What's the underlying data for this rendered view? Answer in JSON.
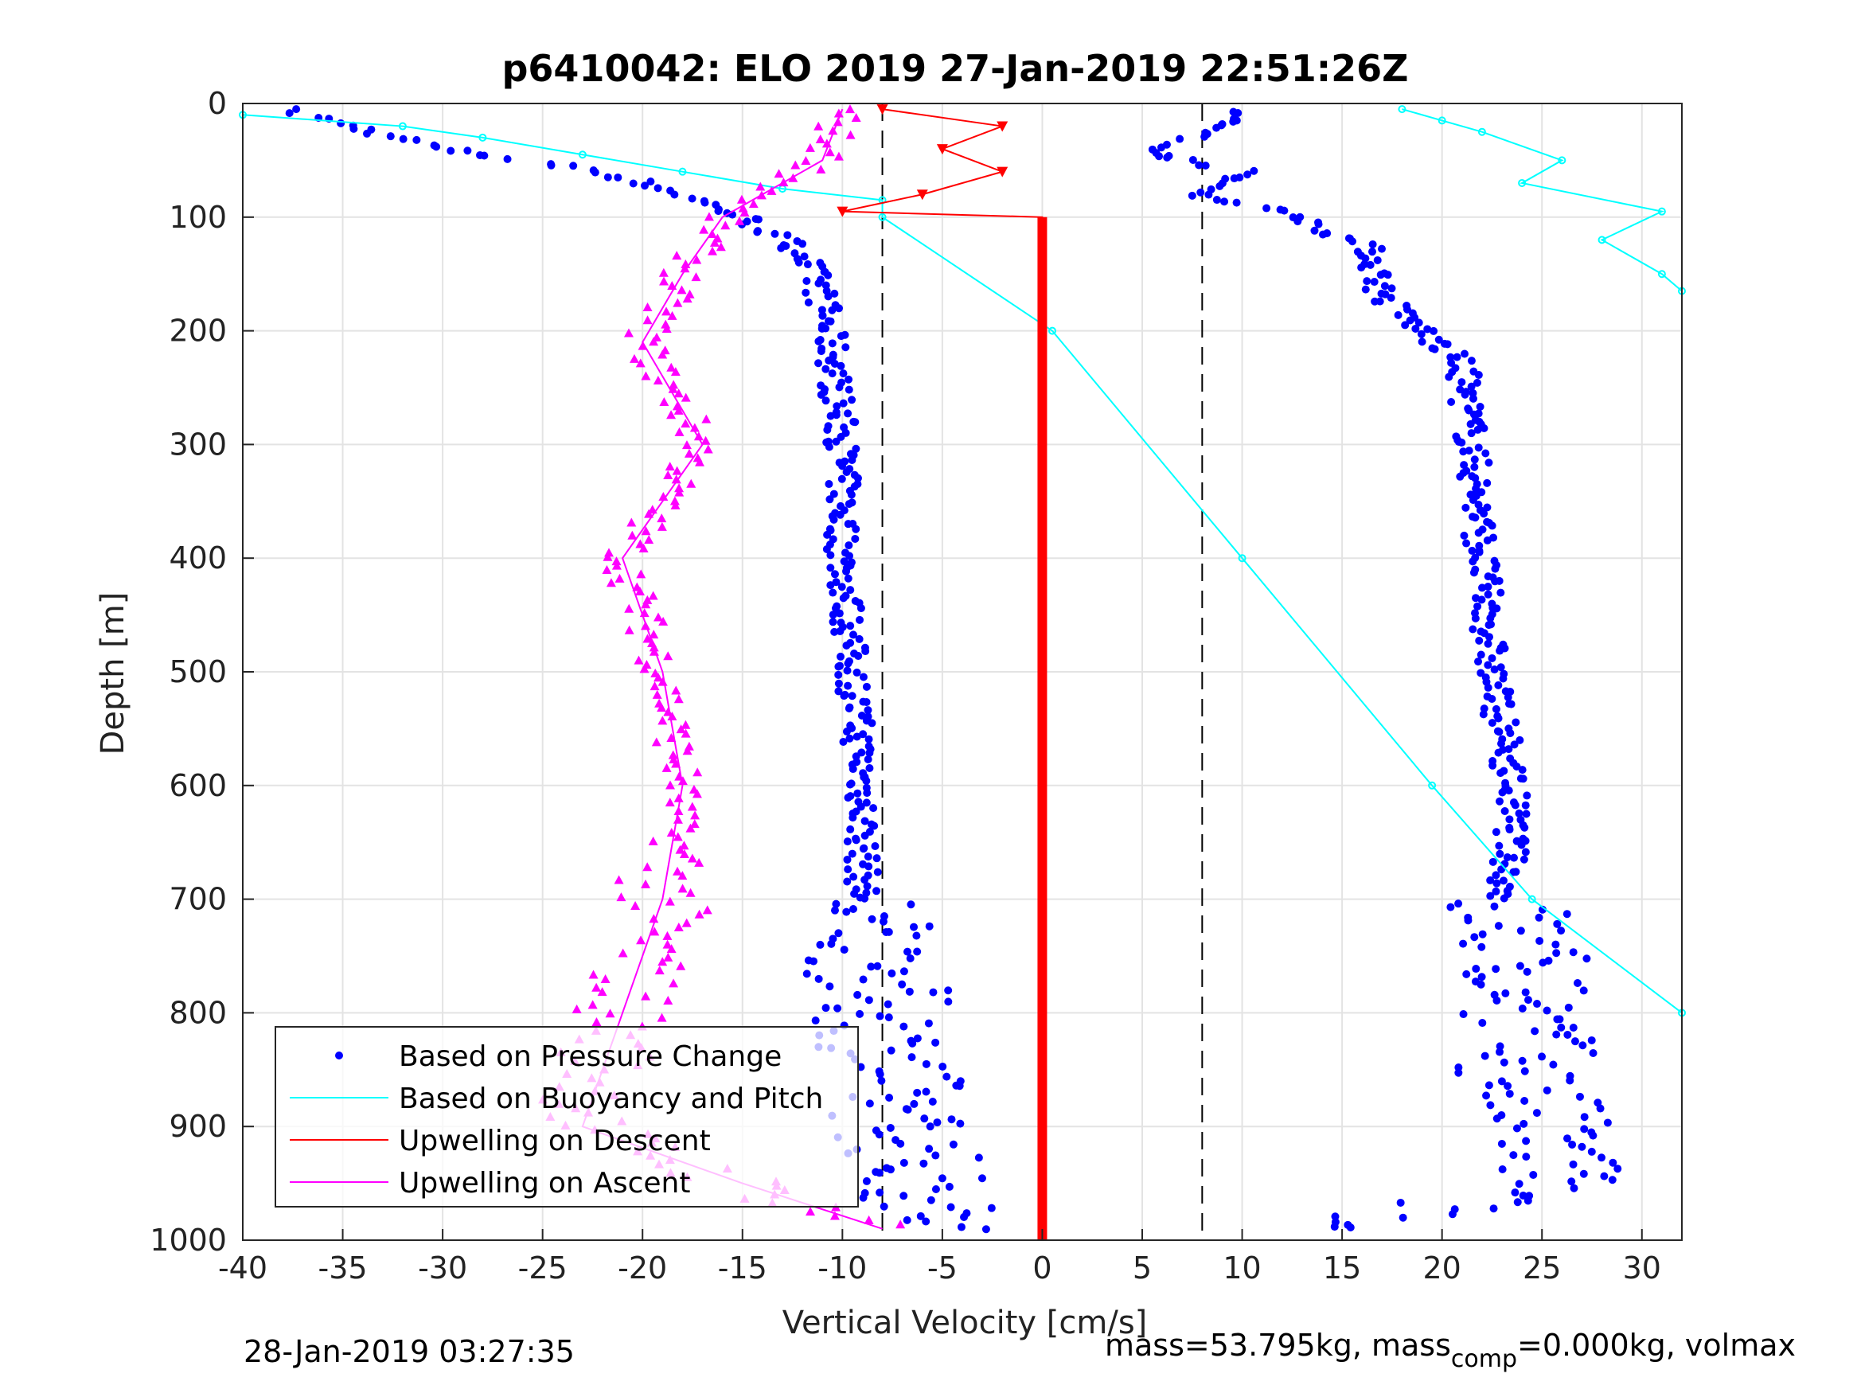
{
  "chart_data": {
    "type": "scatter",
    "title": "p6410042: ELO 2019 27-Jan-2019 22:51:26Z",
    "xlabel": "Vertical Velocity [cm/s]",
    "ylabel": "Depth [m]",
    "xlim": [
      -40,
      32
    ],
    "ylim": [
      1000,
      0
    ],
    "xticks": [
      "-40",
      "-35",
      "-30",
      "-25",
      "-20",
      "-15",
      "-10",
      "-5",
      "0",
      "5",
      "10",
      "15",
      "20",
      "25",
      "30"
    ],
    "yticks": [
      "0",
      "100",
      "200",
      "300",
      "400",
      "500",
      "600",
      "700",
      "800",
      "900",
      "1000"
    ],
    "grid": true,
    "legend_position": "bottom-left",
    "legend": [
      {
        "label": "Based on Pressure Change",
        "color": "#0000ff",
        "marker": "dot"
      },
      {
        "label": "Based on Buoyancy and Pitch",
        "color": "#00ffff",
        "marker": "line"
      },
      {
        "label": "Upwelling on Descent",
        "color": "#ff0000",
        "marker": "line"
      },
      {
        "label": "Upwelling on Ascent",
        "color": "#ff00ff",
        "marker": "line"
      }
    ],
    "threshold_lines_x": [
      -8,
      8
    ],
    "series": [
      {
        "name": "Based on Pressure Change",
        "color": "#0000ff",
        "profiles": [
          {
            "depth": [
              5,
              40,
              60,
              80,
              100,
              130,
              170,
              220,
              300,
              400,
              500,
              600,
              700,
              750,
              800,
              850,
              900,
              950,
              990
            ],
            "velocity": [
              -38,
              -30,
              -22,
              -18,
              -15,
              -12,
              -11,
              -10.5,
              -10,
              -10,
              -9.5,
              -9,
              -9,
              -8.5,
              -8,
              -7.5,
              -7,
              -6,
              -5
            ]
          },
          {
            "depth": [
              5,
              30,
              40,
              60,
              80,
              100,
              130,
              170,
              200,
              230,
              300,
              400,
              500,
              600,
              650,
              700,
              750,
              800,
              850,
              900,
              950,
              990
            ],
            "velocity": [
              10,
              8,
              5,
              10,
              8,
              13,
              16.5,
              17,
              19,
              21,
              21.5,
              22,
              22.5,
              23.5,
              23.5,
              23,
              24,
              24.5,
              24,
              25,
              26,
              14
            ]
          }
        ]
      },
      {
        "name": "Based on Buoyancy and Pitch",
        "color": "#00ffff",
        "profiles": [
          {
            "depth": [
              10,
              20,
              30,
              45,
              60,
              75,
              85,
              100,
              200,
              400,
              600,
              700,
              800
            ],
            "velocity": [
              -40,
              -32,
              -28,
              -23,
              -18,
              -13,
              -8,
              -8,
              0.5,
              10,
              19.5,
              24.5,
              32
            ]
          },
          {
            "depth": [
              5,
              15,
              25,
              50,
              70,
              95,
              120,
              150,
              165
            ],
            "velocity": [
              18,
              20,
              22,
              26,
              24,
              31,
              28,
              31,
              32
            ]
          }
        ]
      },
      {
        "name": "Upwelling on Descent",
        "color": "#ff0000",
        "profiles": [
          {
            "depth": [
              5,
              20,
              40,
              60,
              80,
              95,
              100,
              1000
            ],
            "velocity": [
              -8,
              -2,
              -5,
              -2,
              -6,
              -10,
              0,
              0
            ]
          }
        ]
      },
      {
        "name": "Upwelling on Ascent",
        "color": "#ff00ff",
        "profiles": [
          {
            "depth": [
              5,
              50,
              100,
              150,
              210,
              300,
              400,
              500,
              600,
              700,
              800,
              900,
              950,
              990
            ],
            "velocity": [
              -10,
              -11,
              -16,
              -18,
              -20,
              -17,
              -21,
              -19,
              -18,
              -19,
              -21,
              -23,
              -15,
              -8
            ]
          }
        ]
      }
    ],
    "footer_left": "28-Jan-2019 03:27:35",
    "footer_right": "mass=53.795kg, mass",
    "footer_right_sub": "comp",
    "footer_right_tail": "=0.000kg, volmax"
  }
}
